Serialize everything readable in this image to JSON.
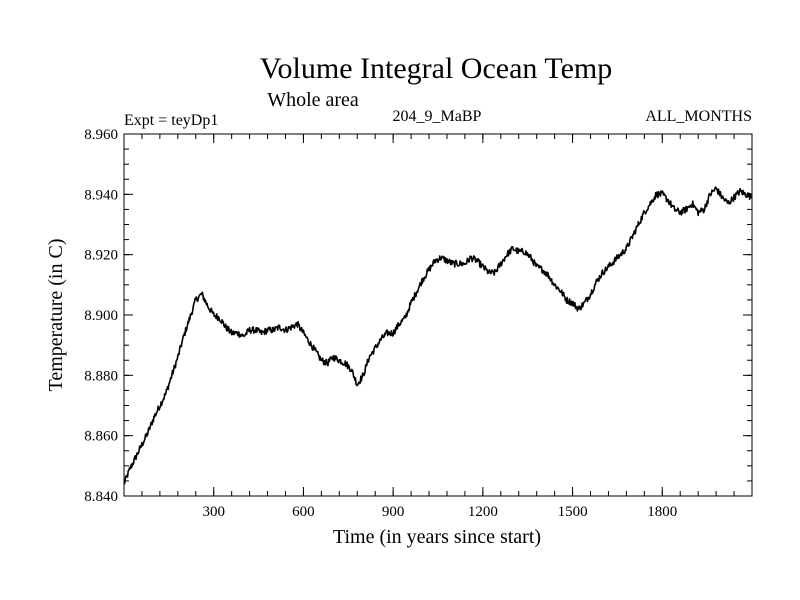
{
  "chart_data": {
    "type": "line",
    "title": "Volume Integral Ocean Temp",
    "subtitle": "Whole area",
    "annotations": {
      "left": "Expt = teyDp1",
      "center": "204_9_MaBP",
      "right": "ALL_MONTHS"
    },
    "xlabel": "Time (in years since start)",
    "ylabel": "Temperature (in C)",
    "xlim": [
      0,
      2100
    ],
    "ylim": [
      8.84,
      8.96
    ],
    "xticks": [
      300,
      600,
      900,
      1200,
      1500,
      1800
    ],
    "xtick_labels": [
      "300",
      "600",
      "900",
      "1200",
      "1500",
      "1800"
    ],
    "yticks": [
      8.84,
      8.86,
      8.88,
      8.9,
      8.92,
      8.94,
      8.96
    ],
    "ytick_labels": [
      "8.840",
      "8.860",
      "8.880",
      "8.900",
      "8.920",
      "8.940",
      "8.960"
    ],
    "grid": false,
    "line_color": "#000000",
    "series": [
      {
        "name": "Volume Integral Ocean Temp",
        "x": [
          0,
          20,
          40,
          60,
          80,
          100,
          120,
          140,
          160,
          180,
          200,
          220,
          240,
          260,
          280,
          300,
          320,
          340,
          360,
          380,
          400,
          420,
          440,
          460,
          480,
          500,
          520,
          540,
          560,
          580,
          600,
          620,
          640,
          660,
          680,
          700,
          720,
          740,
          760,
          780,
          800,
          820,
          840,
          860,
          880,
          900,
          920,
          940,
          960,
          980,
          1000,
          1020,
          1040,
          1060,
          1080,
          1100,
          1120,
          1140,
          1160,
          1180,
          1200,
          1220,
          1240,
          1260,
          1280,
          1300,
          1320,
          1340,
          1360,
          1380,
          1400,
          1420,
          1440,
          1460,
          1480,
          1500,
          1520,
          1540,
          1560,
          1580,
          1600,
          1620,
          1640,
          1660,
          1680,
          1700,
          1720,
          1740,
          1760,
          1780,
          1800,
          1820,
          1840,
          1860,
          1880,
          1900,
          1920,
          1940,
          1960,
          1980,
          2000,
          2020,
          2040,
          2060,
          2080,
          2100
        ],
        "values": [
          8.844,
          8.849,
          8.853,
          8.857,
          8.861,
          8.866,
          8.87,
          8.874,
          8.88,
          8.886,
          8.893,
          8.899,
          8.905,
          8.907,
          8.903,
          8.9,
          8.899,
          8.896,
          8.894,
          8.894,
          8.893,
          8.895,
          8.895,
          8.894,
          8.895,
          8.895,
          8.896,
          8.895,
          8.896,
          8.897,
          8.894,
          8.891,
          8.888,
          8.885,
          8.884,
          8.886,
          8.885,
          8.884,
          8.882,
          8.877,
          8.88,
          8.886,
          8.889,
          8.892,
          8.894,
          8.894,
          8.897,
          8.899,
          8.904,
          8.908,
          8.912,
          8.915,
          8.918,
          8.919,
          8.918,
          8.917,
          8.917,
          8.917,
          8.919,
          8.918,
          8.916,
          8.914,
          8.914,
          8.917,
          8.92,
          8.922,
          8.921,
          8.921,
          8.919,
          8.916,
          8.915,
          8.913,
          8.91,
          8.908,
          8.905,
          8.904,
          8.902,
          8.904,
          8.907,
          8.911,
          8.914,
          8.916,
          8.918,
          8.92,
          8.922,
          8.926,
          8.93,
          8.934,
          8.937,
          8.94,
          8.94,
          8.938,
          8.935,
          8.934,
          8.935,
          8.937,
          8.934,
          8.935,
          8.94,
          8.942,
          8.939,
          8.937,
          8.939,
          8.941,
          8.94,
          8.939
        ]
      }
    ]
  }
}
